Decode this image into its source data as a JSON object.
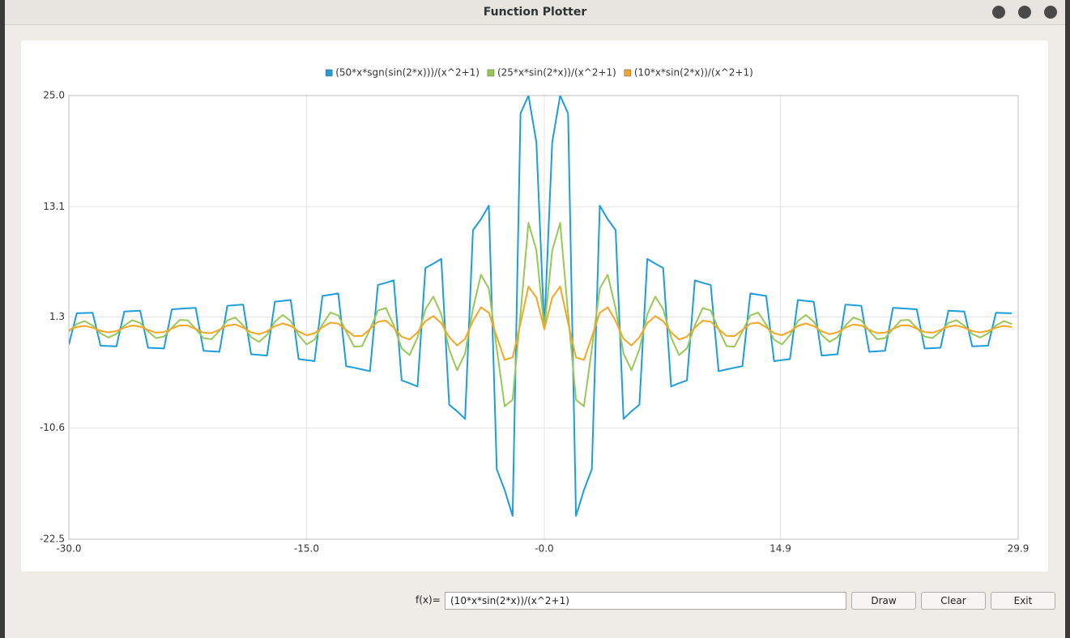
{
  "window": {
    "title": "Function Plotter"
  },
  "chart_data": {
    "type": "line",
    "x": [
      -30,
      -29.5,
      -29,
      -28.5,
      -28,
      -27.5,
      -27,
      -26.5,
      -26,
      -25.5,
      -25,
      -24.5,
      -24,
      -23.5,
      -23,
      -22.5,
      -22,
      -21.5,
      -21,
      -20.5,
      -20,
      -19.5,
      -19,
      -18.5,
      -18,
      -17.5,
      -17,
      -16.5,
      -16,
      -15.5,
      -15,
      -14.5,
      -14,
      -13.5,
      -13,
      -12.5,
      -12,
      -11.5,
      -11,
      -10.5,
      -10,
      -9.5,
      -9,
      -8.5,
      -8,
      -7.5,
      -7,
      -6.5,
      -6,
      -5.5,
      -5,
      -4.5,
      -4,
      -3.5,
      -3,
      -2.5,
      -2,
      -1.5,
      -1,
      -0.5,
      0,
      0.5,
      1,
      1.5,
      2,
      2.5,
      3,
      3.5,
      4,
      4.5,
      5,
      5.5,
      6,
      6.5,
      7,
      7.5,
      8,
      8.5,
      9,
      9.5,
      10,
      10.5,
      11,
      11.5,
      12,
      12.5,
      13,
      13.5,
      14,
      14.5,
      15,
      15.5,
      16,
      16.5,
      17,
      17.5,
      18,
      18.5,
      19,
      19.5,
      20,
      20.5,
      21,
      21.5,
      22,
      22.5,
      23,
      23.5,
      24,
      24.5,
      25,
      25.5,
      26,
      26.5,
      27,
      27.5,
      28,
      28.5,
      29,
      29.5
    ],
    "series": [
      {
        "name": "(50*x*sgn(sin(2*x)))/(x^2+1)",
        "color": "#1f9ddb",
        "values": [
          -1.67,
          1.69,
          1.72,
          1.75,
          -1.78,
          -1.82,
          -1.85,
          1.88,
          1.92,
          1.96,
          -2,
          -2.04,
          -2.08,
          2.12,
          2.17,
          2.22,
          2.27,
          -2.32,
          -2.38,
          -2.43,
          2.49,
          2.56,
          2.62,
          -2.69,
          -2.77,
          -2.85,
          2.93,
          3.02,
          3.11,
          -3.21,
          -3.32,
          -3.43,
          3.55,
          3.68,
          3.82,
          -3.97,
          -4.14,
          -4.32,
          -4.51,
          4.72,
          4.95,
          5.21,
          -5.49,
          -5.8,
          -6.15,
          6.55,
          7,
          7.51,
          -8.11,
          -8.8,
          -9.62,
          10.59,
          11.76,
          13.21,
          -15,
          -17.24,
          -20,
          23.08,
          25,
          20,
          0,
          20,
          25,
          23.08,
          -20,
          -17.24,
          -15,
          13.21,
          11.76,
          10.59,
          -9.62,
          -8.8,
          -8.11,
          7.51,
          7,
          6.55,
          -6.15,
          -5.8,
          -5.49,
          5.21,
          4.95,
          4.72,
          -4.51,
          -4.32,
          -4.14,
          -3.97,
          3.82,
          3.68,
          3.55,
          -3.43,
          -3.32,
          -3.21,
          3.11,
          3.02,
          2.93,
          -2.85,
          -2.77,
          -2.69,
          2.62,
          2.56,
          2.49,
          -2.43,
          -2.38,
          -2.32,
          2.27,
          2.22,
          2.17,
          2.12,
          -2.08,
          -2.04,
          -2,
          1.96,
          1.92,
          1.88,
          -1.85,
          -1.82,
          -1.78,
          1.75,
          1.72,
          1.69
        ]
      },
      {
        "name": "(25*x*sin(2*x))/(x^2+1)",
        "color": "#98c855",
        "values": [
          -0.25,
          0.54,
          0.85,
          0.38,
          -0.46,
          -0.91,
          -0.52,
          0.37,
          0.95,
          0.66,
          -0.26,
          -0.97,
          -0.8,
          0.13,
          0.98,
          0.94,
          0.02,
          -0.97,
          -1.09,
          -0.19,
          0.93,
          1.23,
          0.39,
          -0.87,
          -1.37,
          -0.61,
          0.78,
          1.51,
          0.86,
          -0.65,
          -1.64,
          -1.14,
          0.48,
          1.76,
          1.46,
          -0.26,
          -1.88,
          -1.83,
          -0.02,
          1.98,
          2.26,
          0.39,
          -2.06,
          -2.79,
          -0.89,
          2.13,
          3.47,
          1.58,
          -2.18,
          -4.4,
          -2.62,
          2.18,
          5.82,
          4.34,
          -2.1,
          -8.27,
          -7.57,
          1.63,
          11.37,
          8.41,
          0,
          8.41,
          11.37,
          1.63,
          -7.57,
          -8.27,
          -2.1,
          4.34,
          5.82,
          2.18,
          -2.62,
          -4.4,
          -2.18,
          1.58,
          3.47,
          2.13,
          -0.89,
          -2.79,
          -2.06,
          0.39,
          2.26,
          1.98,
          -0.02,
          -1.83,
          -1.88,
          -0.26,
          1.46,
          1.76,
          0.48,
          -1.14,
          -1.64,
          -0.65,
          0.86,
          1.51,
          0.78,
          -0.61,
          -1.37,
          -0.87,
          0.39,
          1.23,
          0.93,
          -0.19,
          -1.09,
          -0.97,
          0.02,
          0.94,
          0.98,
          0.13,
          -0.8,
          -0.97,
          -0.26,
          0.66,
          0.95,
          0.37,
          -0.52,
          -0.91,
          -0.46,
          0.38,
          0.85,
          0.54
        ]
      },
      {
        "name": "(10*x*sin(2*x))/(x^2+1)",
        "color": "#f5a623",
        "values": [
          -0.1,
          0.22,
          0.34,
          0.15,
          -0.19,
          -0.36,
          -0.21,
          0.15,
          0.38,
          0.26,
          -0.1,
          -0.39,
          -0.32,
          0.05,
          0.39,
          0.38,
          0.01,
          -0.39,
          -0.44,
          -0.08,
          0.37,
          0.49,
          0.16,
          -0.35,
          -0.55,
          -0.24,
          0.31,
          0.6,
          0.34,
          -0.26,
          -0.66,
          -0.45,
          0.19,
          0.7,
          0.58,
          -0.1,
          -0.75,
          -0.73,
          -0.01,
          0.79,
          0.9,
          0.16,
          -0.82,
          -1.12,
          -0.35,
          0.85,
          1.39,
          0.63,
          -0.87,
          -1.76,
          -1.05,
          0.87,
          2.33,
          1.74,
          -0.84,
          -3.31,
          -3.03,
          0.65,
          4.55,
          3.37,
          0,
          3.37,
          4.55,
          0.65,
          -3.03,
          -3.31,
          -0.84,
          1.74,
          2.33,
          0.87,
          -1.05,
          -1.76,
          -0.87,
          0.63,
          1.39,
          0.85,
          -0.35,
          -1.12,
          -0.82,
          0.16,
          0.9,
          0.79,
          -0.01,
          -0.73,
          -0.75,
          -0.1,
          0.58,
          0.7,
          0.19,
          -0.45,
          -0.66,
          -0.26,
          0.34,
          0.6,
          0.31,
          -0.24,
          -0.55,
          -0.35,
          0.16,
          0.49,
          0.37,
          -0.08,
          -0.44,
          -0.39,
          0.01,
          0.38,
          0.39,
          0.05,
          -0.32,
          -0.39,
          -0.1,
          0.26,
          0.38,
          0.15,
          -0.21,
          -0.36,
          -0.19,
          0.15,
          0.34,
          0.22
        ]
      }
    ],
    "xlim": [
      -30,
      29.9
    ],
    "xticks": [
      {
        "value": -30,
        "label": "-30.0"
      },
      {
        "value": -15,
        "label": "-15.0"
      },
      {
        "value": 0,
        "label": "-0.0"
      },
      14.9,
      29.9
    ],
    "ylim": [
      -22.5,
      25
    ],
    "yticks": [
      -22.5,
      -10.6,
      1.3,
      13.1,
      {
        "value": 25,
        "label": "25.0"
      }
    ],
    "grid": true,
    "legend": "top"
  },
  "form": {
    "label": "f(x)=",
    "input": "(10*x*sin(2*x))/(x^2+1)",
    "buttons": [
      "Draw",
      "Clear",
      "Exit"
    ]
  }
}
